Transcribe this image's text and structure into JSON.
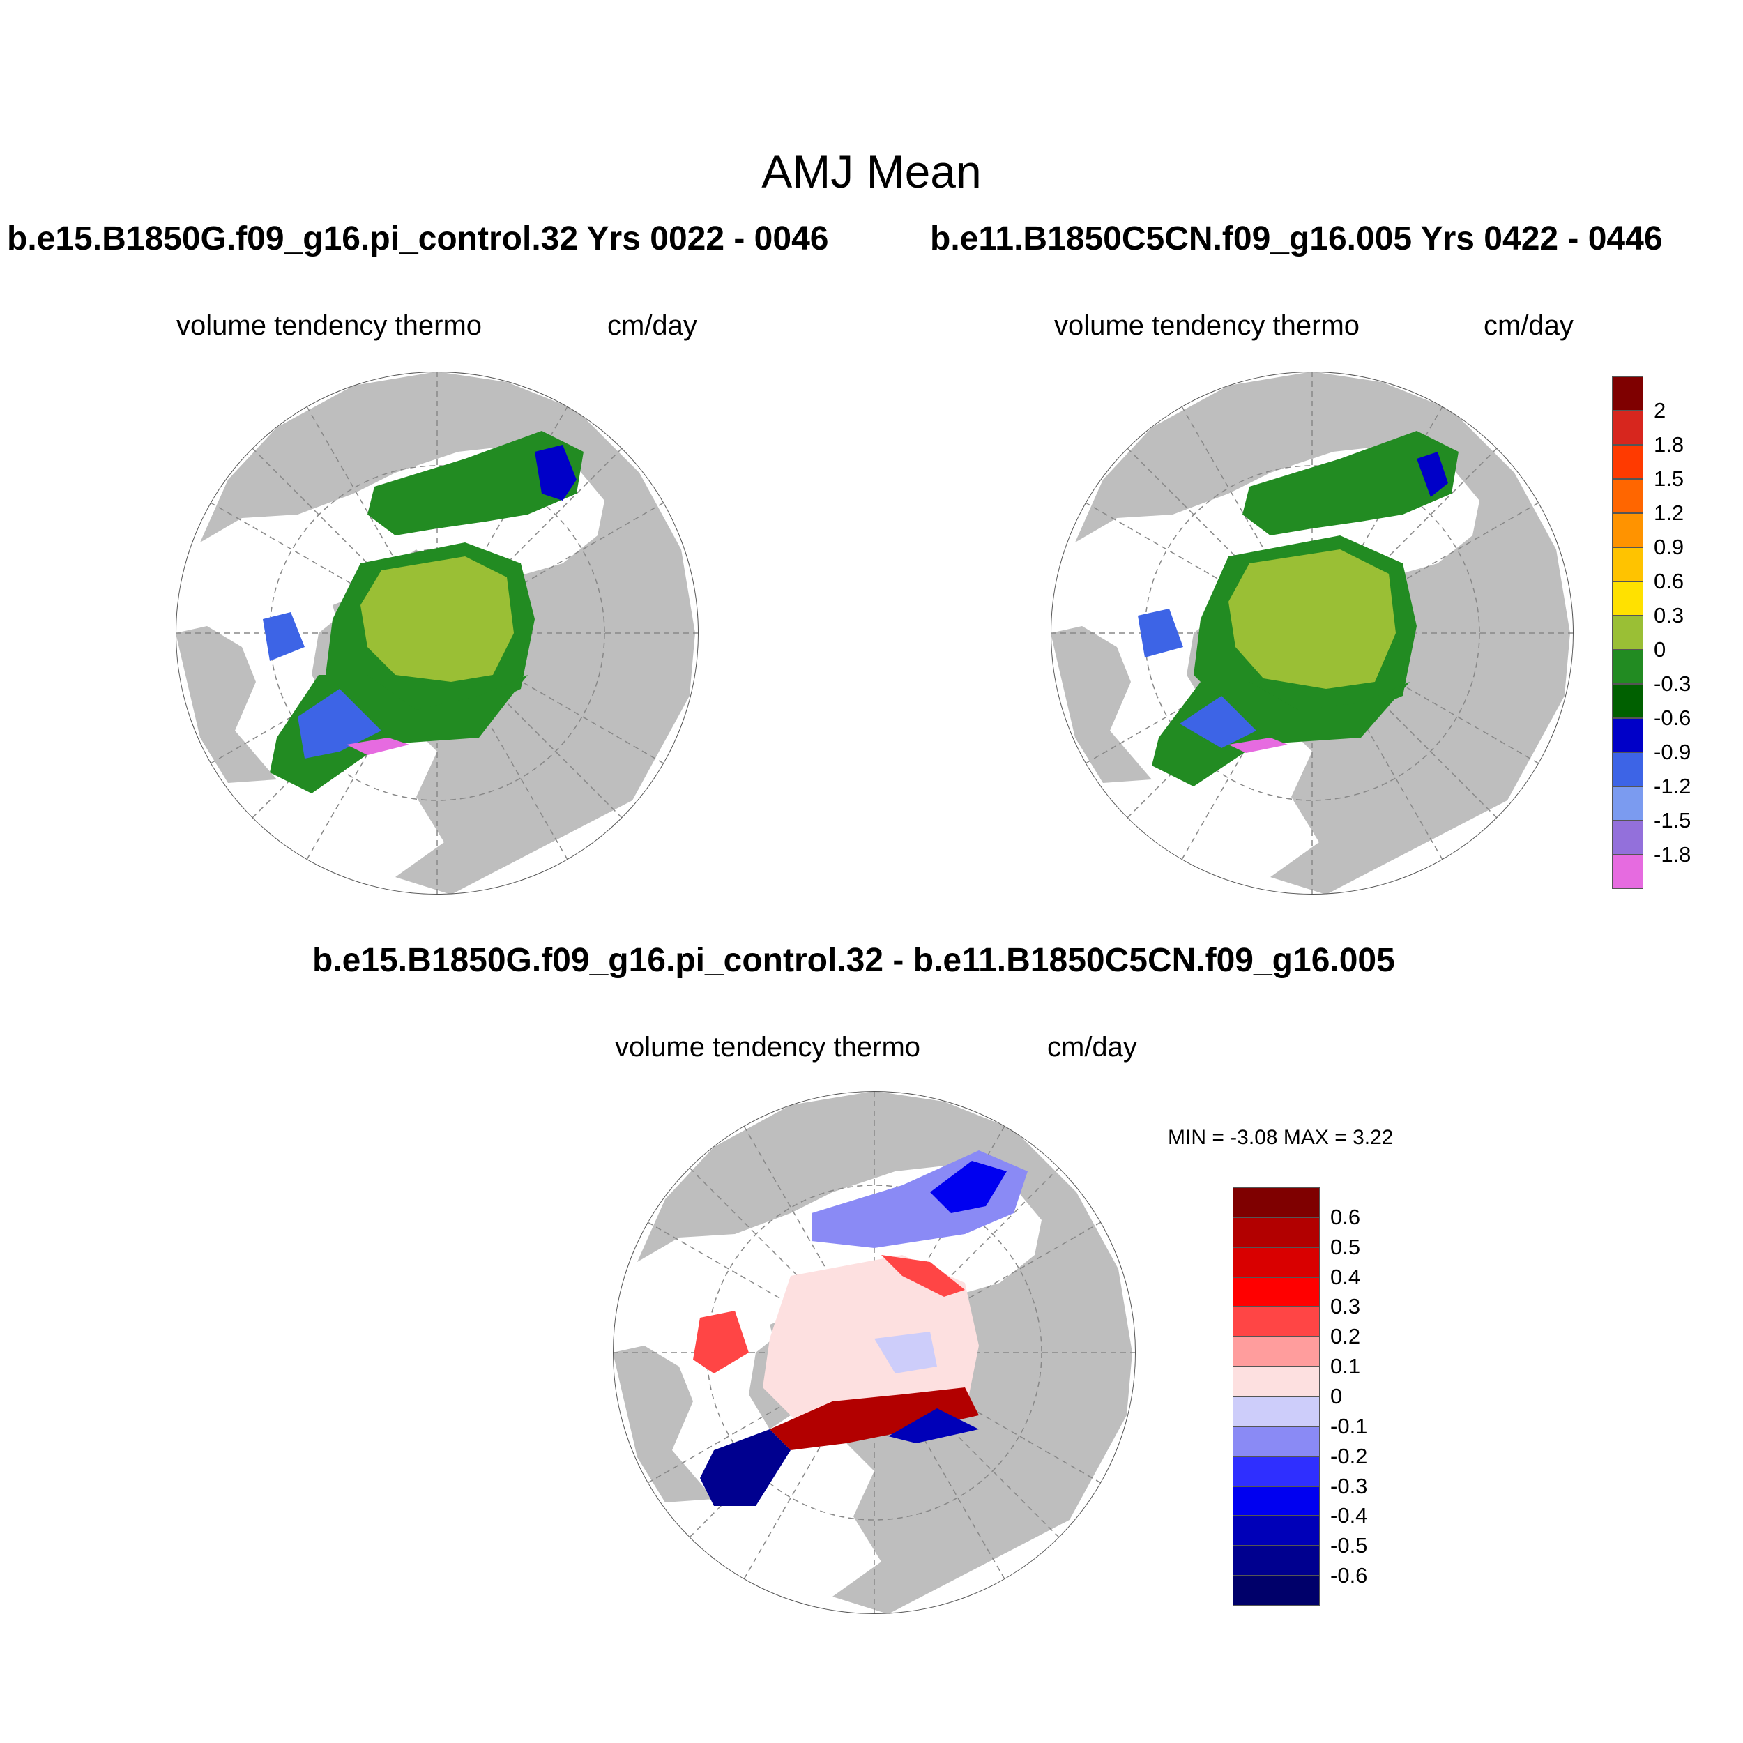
{
  "title": "AMJ Mean",
  "panels": [
    {
      "case_title": "b.e15.B1850G.f09_g16.pi_control.32  Yrs 0022 - 0046",
      "variable": "volume tendency thermo",
      "units": "cm/day"
    },
    {
      "case_title": "b.e11.B1850C5CN.f09_g16.005  Yrs 0422 - 0446",
      "variable": "volume tendency thermo",
      "units": "cm/day"
    },
    {
      "case_title": "b.e15.B1850G.f09_g16.pi_control.32 - b.e11.B1850C5CN.f09_g16.005",
      "variable": "volume tendency thermo",
      "units": "cm/day",
      "min_max": "MIN =  -3.08 MAX =   3.22"
    }
  ],
  "colorbar_top": {
    "labels": [
      "2",
      "1.8",
      "1.5",
      "1.2",
      "0.9",
      "0.6",
      "0.3",
      "0",
      "-0.3",
      "-0.6",
      "-0.9",
      "-1.2",
      "-1.5",
      "-1.8"
    ],
    "colors": [
      "#7f0000",
      "#d7261e",
      "#ff3a00",
      "#ff6600",
      "#ff9300",
      "#ffc300",
      "#ffe100",
      "#9abf35",
      "#228b22",
      "#006000",
      "#0000c8",
      "#3d64e6",
      "#7b9bf0",
      "#9370db",
      "#e66be0"
    ]
  },
  "colorbar_diff": {
    "labels": [
      "0.6",
      "0.5",
      "0.4",
      "0.3",
      "0.2",
      "0.1",
      "0",
      "-0.1",
      "-0.2",
      "-0.3",
      "-0.4",
      "-0.5",
      "-0.6"
    ],
    "colors": [
      "#7f0000",
      "#b20000",
      "#d90000",
      "#ff0000",
      "#ff4545",
      "#ff9d9d",
      "#fde0e0",
      "#cdcdfa",
      "#8a8af5",
      "#2f2fff",
      "#0000f0",
      "#0000b8",
      "#00008f",
      "#00006a"
    ]
  },
  "map_colors": {
    "land": "#bebebe",
    "ocean": "#ffffff"
  }
}
